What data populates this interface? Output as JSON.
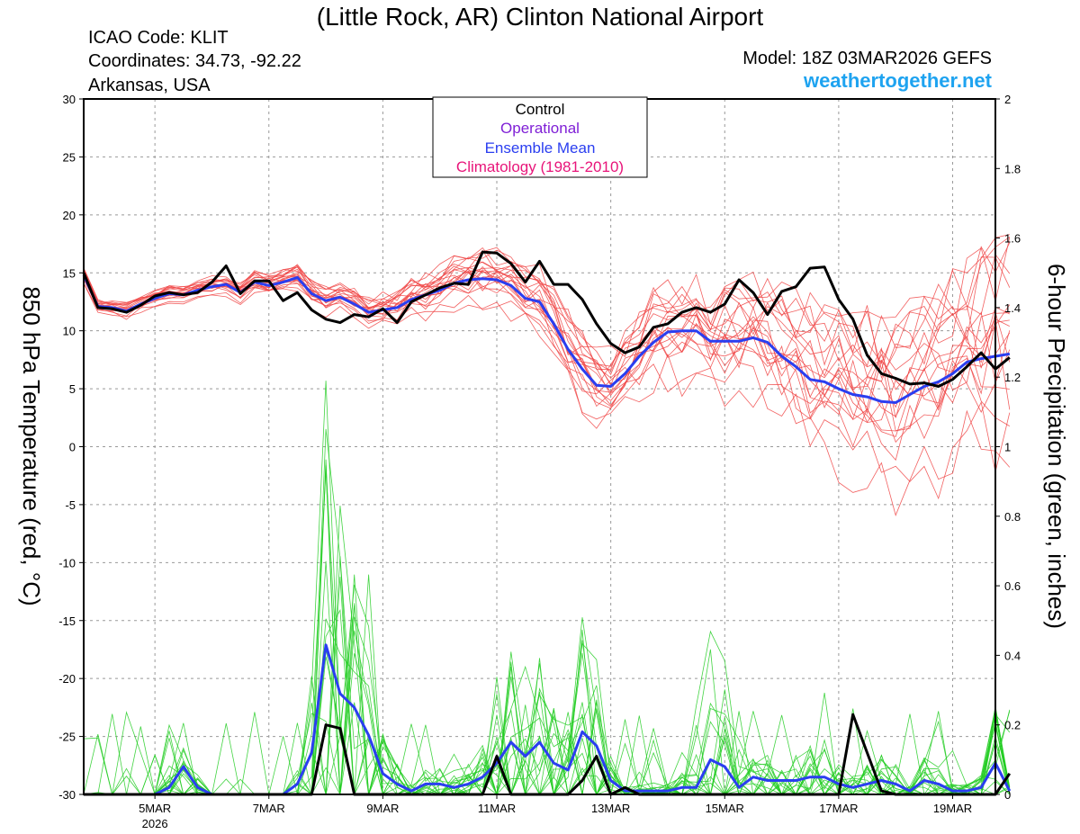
{
  "header": {
    "title": "(Little Rock, AR) Clinton National Airport",
    "icao": "ICAO Code: KLIT",
    "coords": "Coordinates: 34.73, -92.22",
    "region": "Arkansas, USA",
    "model": "Model: 18Z 03MAR2026 GEFS",
    "brand": "weathertogether.net"
  },
  "colors": {
    "control": "#000000",
    "operational": "#7f1fd6",
    "ensemble_mean": "#2a3ef0",
    "climatology": "#e8157a",
    "temp_members": "#f04444",
    "precip_members": "#22cc22",
    "brand": "#1ea3f0"
  },
  "legend": {
    "control": "Control",
    "operational": "Operational",
    "ensemble_mean": "Ensemble Mean",
    "climatology": "Climatology (1981-2010)"
  },
  "chart_data": {
    "type": "line",
    "title": "(Little Rock, AR) Clinton National Airport",
    "ylabel": "850 hPa Temperature (red, °C)",
    "y2label": "6-hour Precipitation (green, inches)",
    "ylim": [
      -30,
      30
    ],
    "y2lim": [
      0,
      2
    ],
    "xlim": [
      3.75,
      19.75
    ],
    "yticks": [
      30,
      25,
      20,
      15,
      10,
      5,
      0,
      -5,
      -10,
      -15,
      -20,
      -25,
      -30
    ],
    "y2ticks": [
      "2",
      "1.8",
      "1.6",
      "1.4",
      "1.2",
      "1",
      "0.8",
      "0.6",
      "0.4",
      "0.2",
      "0"
    ],
    "xticks": [
      {
        "day": 5,
        "label": "5MAR",
        "sub": "2026"
      },
      {
        "day": 7,
        "label": "7MAR"
      },
      {
        "day": 9,
        "label": "9MAR"
      },
      {
        "day": 11,
        "label": "11MAR"
      },
      {
        "day": 13,
        "label": "13MAR"
      },
      {
        "day": 15,
        "label": "15MAR"
      },
      {
        "day": 17,
        "label": "17MAR"
      },
      {
        "day": 19,
        "label": "19MAR"
      }
    ],
    "x_start_day": 3.75,
    "x_step_days": 0.25,
    "series": [
      {
        "name": "Control 850 hPa Temperature",
        "axis": "left",
        "values": [
          15,
          12,
          11.9,
          11.6,
          12.2,
          13,
          13.3,
          13.1,
          13.3,
          14.2,
          15.6,
          13.2,
          14.3,
          14.3,
          12.6,
          13.3,
          11.8,
          11,
          10.7,
          11.4,
          11.2,
          11.9,
          10.7,
          12.5,
          13.1,
          13.7,
          14.1,
          14,
          16.8,
          16.7,
          15.8,
          14.2,
          16,
          14,
          14,
          12.7,
          10.6,
          8.9,
          8.1,
          8.6,
          10.3,
          10.6,
          11.6,
          12,
          11.6,
          12.3,
          14.4,
          13.3,
          11.4,
          13.4,
          13.8,
          15.4,
          15.5,
          12.7,
          11,
          7.9,
          6.3,
          5.9,
          5.4,
          5.5,
          5.2,
          5.8,
          6.9,
          8.1,
          6.7,
          7.7
        ]
      },
      {
        "name": "Ensemble Mean 850 hPa Temperature",
        "axis": "left",
        "values": [
          14.8,
          12.1,
          12,
          11.7,
          12.3,
          12.8,
          13.2,
          13.1,
          13.5,
          13.8,
          14,
          13.3,
          14.2,
          13.9,
          14.2,
          14.6,
          13.2,
          12.6,
          12.9,
          12.3,
          11.6,
          11.8,
          12,
          12.7,
          13.1,
          13.5,
          14.1,
          14.4,
          14.5,
          14.4,
          13.9,
          12.8,
          12.5,
          10.6,
          8.4,
          6.7,
          5.3,
          5.2,
          6.3,
          7.8,
          9,
          9.9,
          10,
          10,
          9.1,
          9.1,
          9.1,
          9.4,
          9,
          7.8,
          6.9,
          5.8,
          5.6,
          5,
          4.5,
          4.3,
          3.9,
          3.8,
          4.5,
          5.2,
          5.6,
          6.3,
          7.3,
          7.6,
          7.8,
          8
        ]
      },
      {
        "name": "Control 6-hour Precipitation",
        "axis": "right",
        "values": [
          0,
          0,
          0,
          0,
          0,
          0,
          0,
          0,
          0,
          0,
          0,
          0,
          0,
          0,
          0,
          0,
          0,
          0.2,
          0.19,
          0,
          0,
          0,
          0,
          0,
          0,
          0,
          0,
          0,
          0,
          0.11,
          0,
          0,
          0,
          0,
          0,
          0.04,
          0.11,
          0,
          0.02,
          0,
          0,
          0,
          0,
          0,
          0,
          0,
          0,
          0,
          0,
          0,
          0,
          0,
          0,
          0,
          0.23,
          0.12,
          0.01,
          0,
          0,
          0,
          0,
          0,
          0,
          0,
          0,
          0.06
        ]
      },
      {
        "name": "Ensemble Mean 6-hour Precipitation",
        "axis": "right",
        "values": [
          0,
          0,
          0,
          0,
          0,
          0,
          0.02,
          0.08,
          0.02,
          0,
          0,
          0,
          0,
          0,
          0,
          0.03,
          0.12,
          0.43,
          0.29,
          0.25,
          0.17,
          0.06,
          0.03,
          0.01,
          0.03,
          0.03,
          0.02,
          0.03,
          0.05,
          0.09,
          0.15,
          0.11,
          0.15,
          0.09,
          0.07,
          0.18,
          0.14,
          0.04,
          0.01,
          0.01,
          0.01,
          0.01,
          0.02,
          0.02,
          0.1,
          0.08,
          0.02,
          0.05,
          0.04,
          0.04,
          0.04,
          0.05,
          0.05,
          0.03,
          0.02,
          0.03,
          0.04,
          0.03,
          0.01,
          0.04,
          0.03,
          0.01,
          0.01,
          0.02,
          0.09,
          0.01
        ]
      }
    ]
  }
}
